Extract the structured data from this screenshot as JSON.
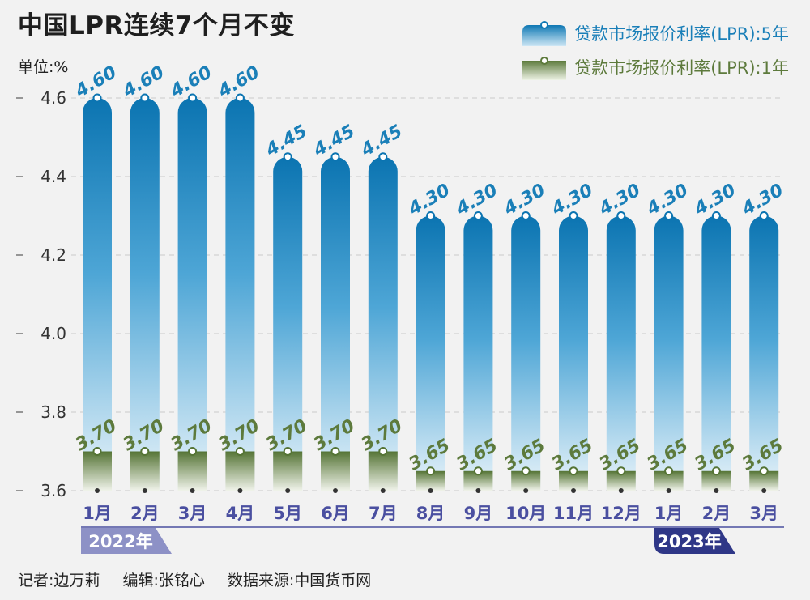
{
  "title": "中国LPR连续7个月不变",
  "unit_label": "单位:%",
  "legend": [
    {
      "label": "贷款市场报价利率(LPR):5年",
      "color": "#1a7fb8"
    },
    {
      "label": "贷款市场报价利率(LPR):1年",
      "color": "#5d7a3c"
    }
  ],
  "footer": {
    "reporter": "记者:边万莉",
    "editor": "编辑:张铭心",
    "source": "数据来源:中国货币网"
  },
  "chart_data": {
    "type": "bar",
    "categories": [
      "1月",
      "2月",
      "3月",
      "4月",
      "5月",
      "6月",
      "7月",
      "8月",
      "9月",
      "10月",
      "11月",
      "12月",
      "1月",
      "2月",
      "3月"
    ],
    "year_groups": [
      {
        "label": "2022年",
        "start": 0,
        "end": 11
      },
      {
        "label": "2023年",
        "start": 12,
        "end": 14
      }
    ],
    "series": [
      {
        "name": "贷款市场报价利率(LPR):5年",
        "values": [
          4.6,
          4.6,
          4.6,
          4.6,
          4.45,
          4.45,
          4.45,
          4.3,
          4.3,
          4.3,
          4.3,
          4.3,
          4.3,
          4.3,
          4.3
        ],
        "labels": [
          "4.60",
          "4.60",
          "4.60",
          "4.60",
          "4.45",
          "4.45",
          "4.45",
          "4.30",
          "4.30",
          "4.30",
          "4.30",
          "4.30",
          "4.30",
          "4.30",
          "4.30"
        ]
      },
      {
        "name": "贷款市场报价利率(LPR):1年",
        "values": [
          3.7,
          3.7,
          3.7,
          3.7,
          3.7,
          3.7,
          3.7,
          3.65,
          3.65,
          3.65,
          3.65,
          3.65,
          3.65,
          3.65,
          3.65
        ],
        "labels": [
          "3.70",
          "3.70",
          "3.70",
          "3.70",
          "3.70",
          "3.70",
          "3.70",
          "3.65",
          "3.65",
          "3.65",
          "3.65",
          "3.65",
          "3.65",
          "3.65",
          "3.65"
        ]
      }
    ],
    "y_ticks": [
      3.6,
      3.8,
      4.0,
      4.2,
      4.4,
      4.6
    ],
    "y_tick_labels": [
      "3.6",
      "3.8",
      "4.0",
      "4.2",
      "4.4",
      "4.6"
    ],
    "ylim": [
      3.6,
      4.6
    ],
    "grid": true,
    "legend_position": "top-right"
  }
}
